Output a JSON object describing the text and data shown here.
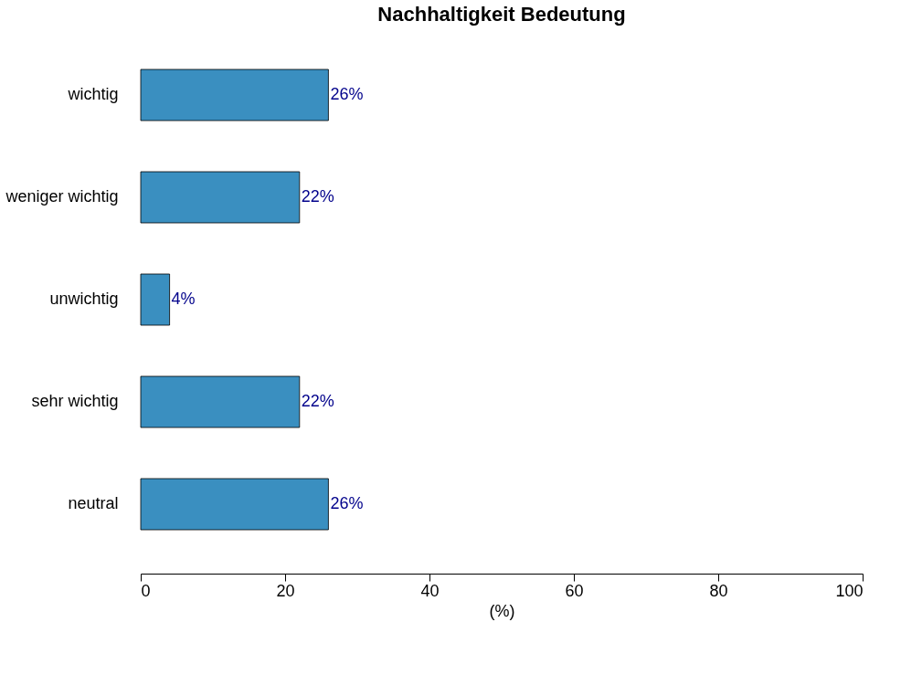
{
  "chart_data": {
    "type": "bar",
    "orientation": "horizontal",
    "title": "Nachhaltigkeit Bedeutung",
    "xlabel": "(%)",
    "categories": [
      "wichtig",
      "weniger wichtig",
      "unwichtig",
      "sehr wichtig",
      "neutral"
    ],
    "values": [
      26,
      22,
      4,
      22,
      26
    ],
    "value_labels": [
      "26%",
      "22%",
      "4%",
      "22%",
      "26%"
    ],
    "color": "#3a8fc0",
    "xlim": [
      0,
      100
    ],
    "xticks": [
      0,
      20,
      40,
      60,
      80,
      100
    ],
    "grid": false
  }
}
